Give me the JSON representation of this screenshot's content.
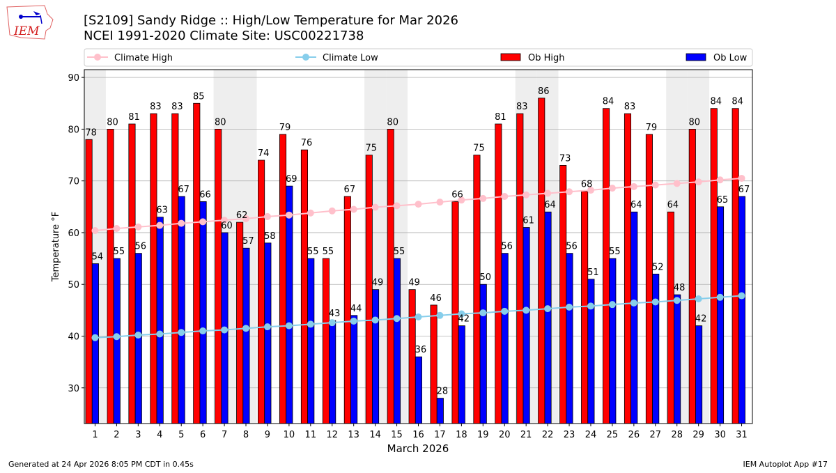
{
  "header": {
    "title_line1": "[S2109] Sandy Ridge :: High/Low Temperature for Mar 2026",
    "title_line2": "NCEI 1991-2020 Climate Site: USC00221738",
    "logo_text": "IEM"
  },
  "footer": {
    "generated": "Generated at 24 Apr 2026 8:05 PM CDT in 0.45s",
    "app": "IEM Autoplot App #17"
  },
  "colors": {
    "ob_high": "#ff0000",
    "ob_low": "#0000ff",
    "climate_high": "#ffc0cb",
    "climate_low": "#87ceeb",
    "weekend_shade": "#eeeeee"
  },
  "chart_data": {
    "type": "bar",
    "title": "[S2109] Sandy Ridge :: High/Low Temperature for Mar 2026",
    "xlabel": "March 2026",
    "ylabel": "Temperature °F",
    "ylim": [
      23.1,
      91.5
    ],
    "yticks": [
      30,
      40,
      50,
      60,
      70,
      80,
      90
    ],
    "grid": true,
    "legend_position": "top",
    "legend": [
      "Climate High",
      "Climate Low",
      "Ob High",
      "Ob Low"
    ],
    "categories": [
      "1",
      "2",
      "3",
      "4",
      "5",
      "6",
      "7",
      "8",
      "9",
      "10",
      "11",
      "12",
      "13",
      "14",
      "15",
      "16",
      "17",
      "18",
      "19",
      "20",
      "21",
      "22",
      "23",
      "24",
      "25",
      "26",
      "27",
      "28",
      "29",
      "30",
      "31"
    ],
    "weekend_days": [
      1,
      7,
      8,
      14,
      15,
      21,
      22,
      28,
      29
    ],
    "series": [
      {
        "name": "Ob High",
        "type": "bar",
        "values": [
          78,
          80,
          81,
          83,
          83,
          85,
          80,
          62,
          74,
          79,
          76,
          55,
          67,
          75,
          80,
          49,
          46,
          66,
          75,
          81,
          83,
          86,
          73,
          68,
          84,
          83,
          79,
          64,
          80,
          84,
          84
        ]
      },
      {
        "name": "Ob Low",
        "type": "bar",
        "values": [
          54,
          55,
          56,
          63,
          67,
          66,
          60,
          57,
          58,
          69,
          55,
          43,
          44,
          49,
          55,
          36,
          28,
          42,
          50,
          56,
          61,
          64,
          56,
          51,
          55,
          64,
          52,
          48,
          42,
          65,
          67
        ]
      },
      {
        "name": "Climate High",
        "type": "line",
        "values": [
          60.4,
          60.8,
          61.1,
          61.4,
          61.8,
          62.1,
          62.4,
          62.7,
          63.1,
          63.4,
          63.8,
          64.2,
          64.5,
          64.9,
          65.2,
          65.5,
          65.9,
          66.3,
          66.6,
          67.0,
          67.3,
          67.6,
          67.9,
          68.2,
          68.6,
          68.9,
          69.2,
          69.5,
          69.8,
          70.2,
          70.5
        ]
      },
      {
        "name": "Climate Low",
        "type": "line",
        "values": [
          39.7,
          39.9,
          40.2,
          40.4,
          40.7,
          41.0,
          41.2,
          41.5,
          41.8,
          42.0,
          42.3,
          42.6,
          42.9,
          43.1,
          43.4,
          43.7,
          44.0,
          44.3,
          44.5,
          44.8,
          45.0,
          45.3,
          45.6,
          45.8,
          46.1,
          46.4,
          46.6,
          46.9,
          47.2,
          47.5,
          47.8
        ]
      }
    ]
  }
}
